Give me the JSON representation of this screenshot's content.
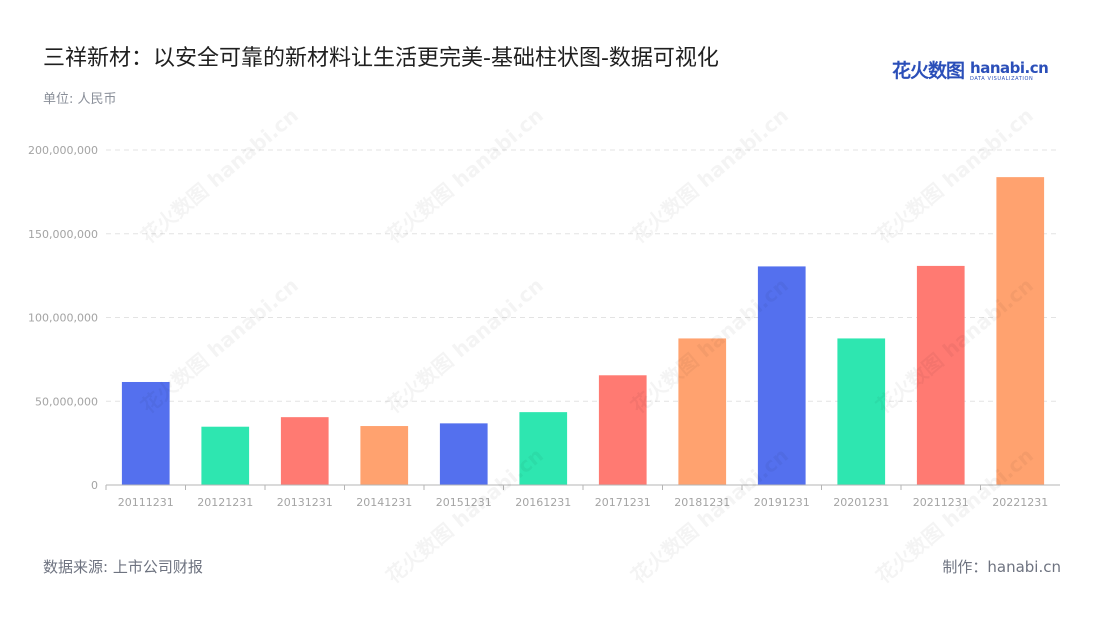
{
  "header": {
    "title": "三祥新材：以安全可靠的新材料让生活更完美-基础柱状图-数据可视化",
    "unit": "单位: 人民币"
  },
  "logo": {
    "cn": "花火数图",
    "en": "hanabi.cn",
    "tag": "DATA VISUALIZATION"
  },
  "footer": {
    "source": "数据来源: 上市公司财报",
    "credit": "制作：hanabi.cn"
  },
  "colors": {
    "palette": [
      "#5470ee",
      "#2ee6b0",
      "#ff7a72",
      "#ffa26f"
    ],
    "grid": "#e3e3e3",
    "axis": "#b5b5b5",
    "tick_text": "#a4a4a4"
  },
  "chart_data": {
    "type": "bar",
    "categories": [
      "20111231",
      "20121231",
      "20131231",
      "20141231",
      "20151231",
      "20161231",
      "20171231",
      "20181231",
      "20191231",
      "20201231",
      "20211231",
      "20221231"
    ],
    "values": [
      61500000,
      34800000,
      40500000,
      35200000,
      36800000,
      43500000,
      65500000,
      87500000,
      130500000,
      87500000,
      130800000,
      183800000
    ],
    "ylim": [
      0,
      200000000
    ],
    "yticks": [
      0,
      50000000,
      100000000,
      150000000,
      200000000
    ],
    "ytick_labels": [
      "0",
      "50,000,000",
      "100,000,000",
      "150,000,000",
      "200,000,000"
    ],
    "grid": true,
    "legend": "none",
    "xlabel": "",
    "ylabel": ""
  }
}
